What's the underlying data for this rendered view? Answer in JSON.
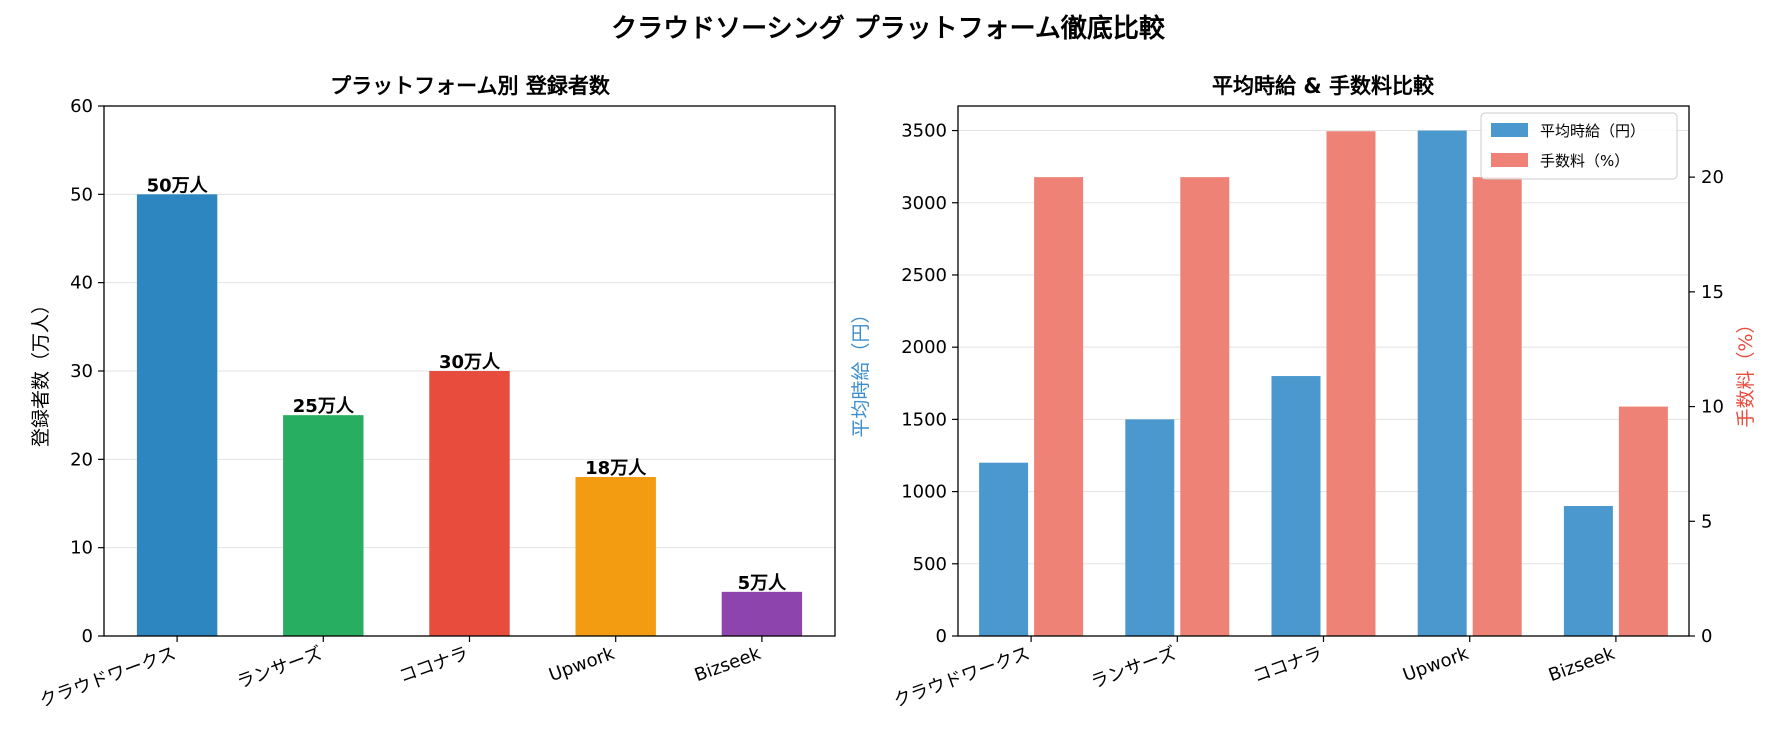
{
  "title": "クラウドソーシング プラットフォーム徹底比較",
  "chart_data": [
    {
      "type": "bar",
      "title": "プラットフォーム別 登録者数",
      "ylabel": "登録者数（万人）",
      "ylim": [
        0,
        60
      ],
      "yticks": [
        0,
        10,
        20,
        30,
        40,
        50,
        60
      ],
      "grid": true,
      "categories": [
        "クラウドワークス",
        "ランサーズ",
        "ココナラ",
        "Upwork",
        "Bizseek"
      ],
      "values": [
        50,
        25,
        30,
        18,
        5
      ],
      "data_labels": [
        "50万人",
        "25万人",
        "30万人",
        "18万人",
        "5万人"
      ],
      "colors": [
        "#2e86c1",
        "#27ae60",
        "#e74c3c",
        "#f39c12",
        "#8e44ad"
      ]
    },
    {
      "type": "bar",
      "title": "平均時給 & 手数料比較",
      "grid": true,
      "legend_position": "top-right",
      "categories": [
        "クラウドワークス",
        "ランサーズ",
        "ココナラ",
        "Upwork",
        "Bizseek"
      ],
      "y_left": {
        "label": "平均時給（円）",
        "range": [
          0,
          3670
        ],
        "ticks": [
          0,
          500,
          1000,
          1500,
          2000,
          2500,
          3000,
          3500
        ],
        "color": "#3b8dd0"
      },
      "y_right": {
        "label": "手数料（%）",
        "range": [
          0,
          23.1
        ],
        "ticks": [
          0,
          5,
          10,
          15,
          20
        ],
        "color": "#e74c3c"
      },
      "series": [
        {
          "name": "平均時給（円）",
          "axis": "left",
          "color": "#4a98ce",
          "values": [
            1200,
            1500,
            1800,
            3500,
            900
          ]
        },
        {
          "name": "手数料（%）",
          "axis": "right",
          "color": "#ee8276",
          "values": [
            20,
            20,
            22,
            20,
            10
          ]
        }
      ]
    }
  ]
}
